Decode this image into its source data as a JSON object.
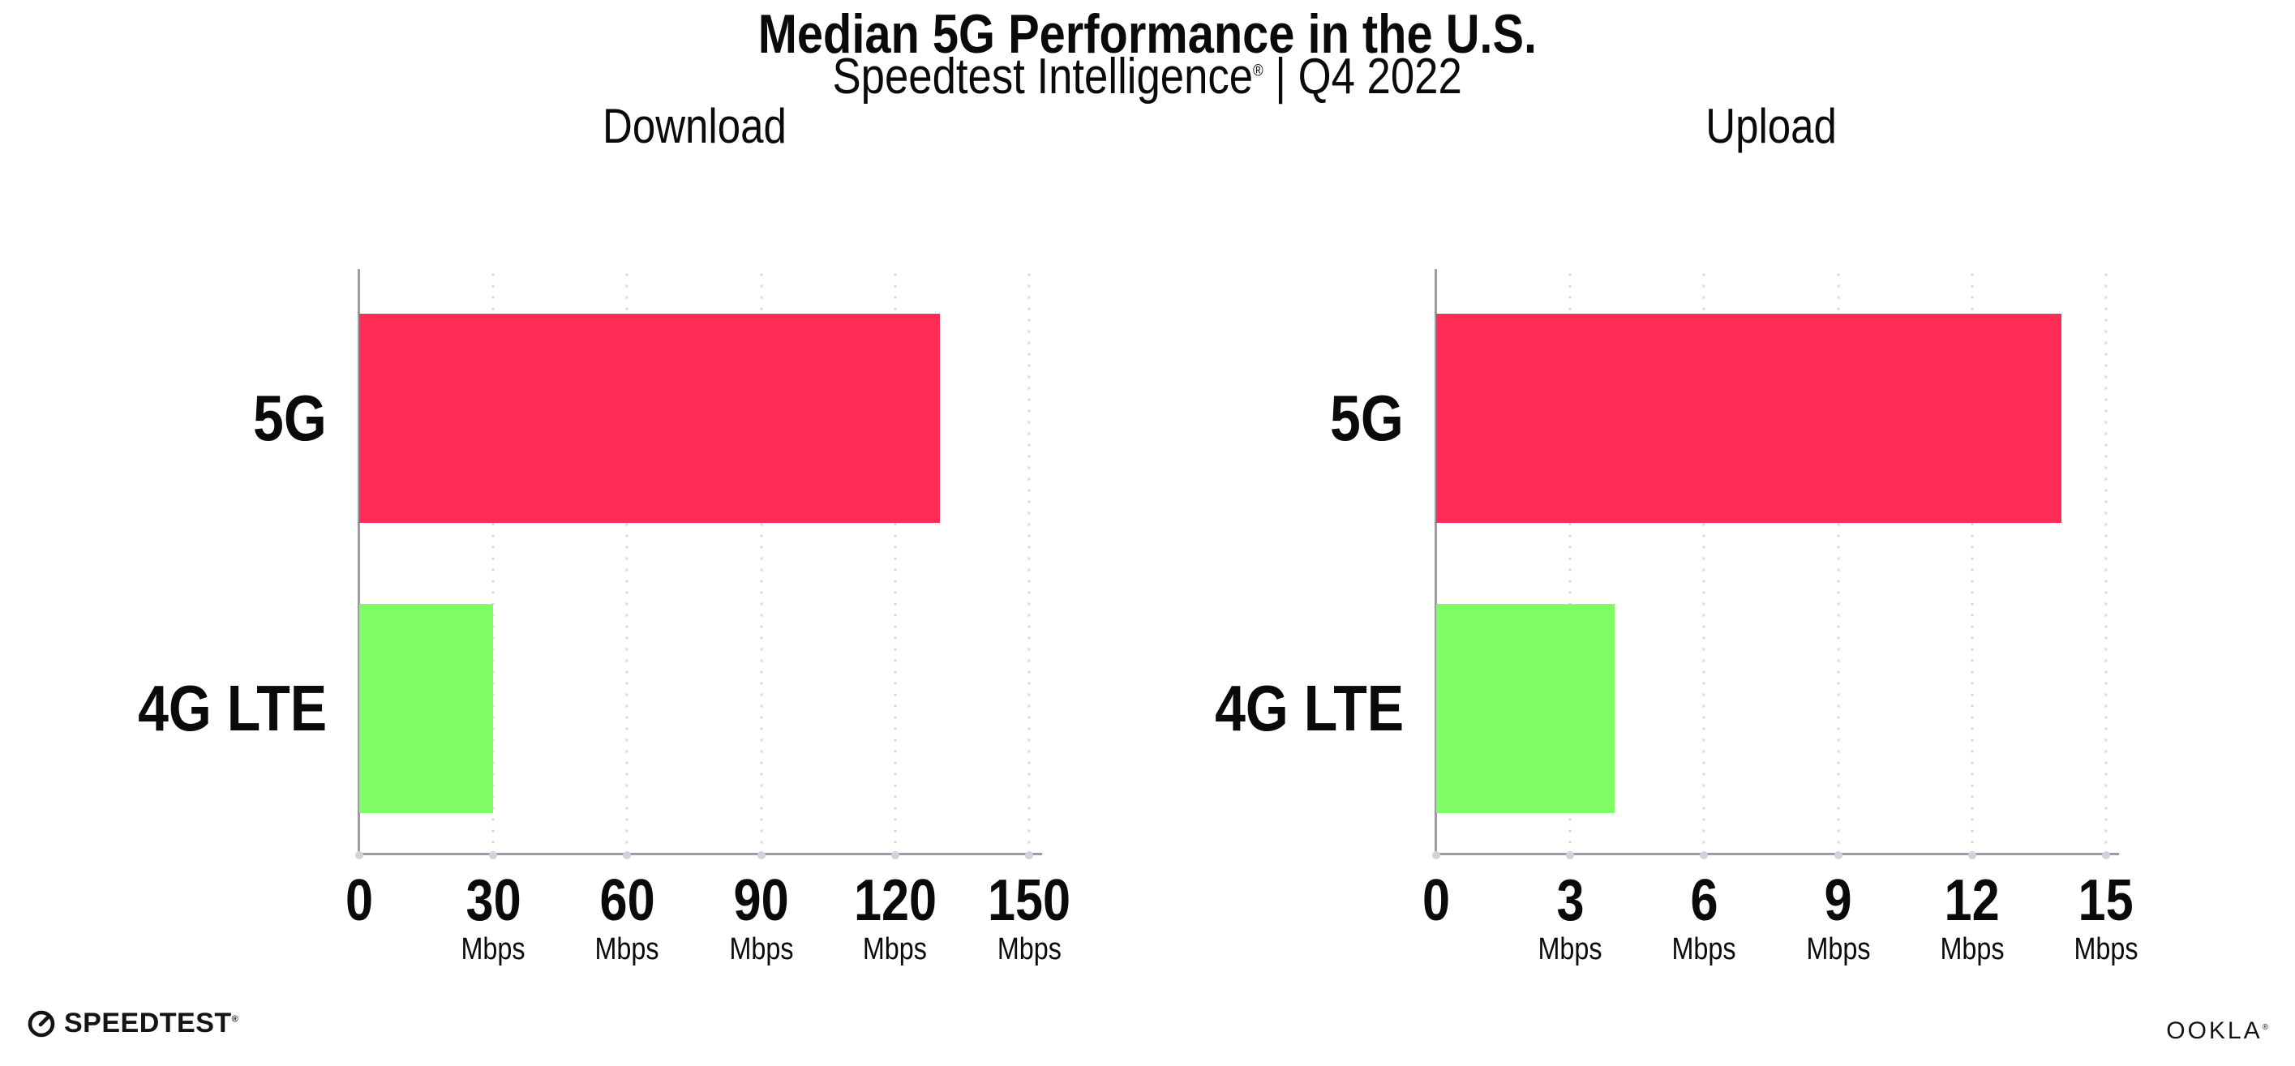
{
  "page": {
    "title": "Median 5G Performance in the U.S.",
    "subtitle_brand": "Speedtest Intelligence",
    "subtitle_reg": "®",
    "subtitle_rest": "| Q4 2022"
  },
  "chart_data": [
    {
      "type": "bar",
      "orientation": "horizontal",
      "title": "Download",
      "categories": [
        "5G",
        "4G LTE"
      ],
      "values": [
        130,
        30
      ],
      "unit": "Mbps",
      "xlim": [
        0,
        150
      ],
      "ticks": [
        0,
        30,
        60,
        90,
        120,
        150
      ],
      "grid": "dotted-vertical-at-ticks",
      "bar_colors": [
        "#FF2D55",
        "#80FC66"
      ]
    },
    {
      "type": "bar",
      "orientation": "horizontal",
      "title": "Upload",
      "categories": [
        "5G",
        "4G LTE"
      ],
      "values": [
        14,
        4
      ],
      "unit": "Mbps",
      "xlim": [
        0,
        15
      ],
      "ticks": [
        0,
        3,
        6,
        9,
        12,
        15
      ],
      "grid": "dotted-vertical-at-ticks",
      "bar_colors": [
        "#FF2D55",
        "#80FC66"
      ]
    }
  ],
  "colors": {
    "bar_5g": "#FF2D55",
    "bar_4g_lte": "#80FC66",
    "axis": "#9B9BA3",
    "gridline": "#DEDEE8",
    "text": "#0A0A0A"
  },
  "footer": {
    "speedtest_label": "SPEEDTEST",
    "speedtest_reg": "®",
    "ookla_label": "OOKLA",
    "ookla_reg": "®"
  }
}
